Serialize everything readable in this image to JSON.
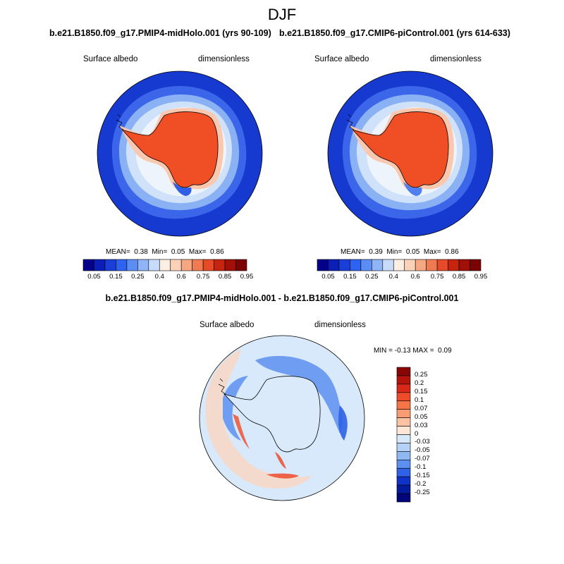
{
  "page": {
    "title": "DJF",
    "diff_title": "b.e21.B1850.f09_g17.PMIP4-midHolo.001 - b.e21.B1850.f09_g17.CMIP6-piControl.001"
  },
  "panels": {
    "left": {
      "case_title": "b.e21.B1850.f09_g17.PMIP4-midHolo.001 (yrs 90-109)",
      "variable": "Surface albedo",
      "units": "dimensionless",
      "mean_label": "MEAN=",
      "mean": "0.38",
      "min_label": "Min=",
      "min": "0.05",
      "max_label": "Max=",
      "max": "0.86"
    },
    "right": {
      "case_title": "b.e21.B1850.f09_g17.CMIP6-piControl.001 (yrs 614-633)",
      "variable": "Surface albedo",
      "units": "dimensionless",
      "mean_label": "MEAN=",
      "mean": "0.39",
      "min_label": "Min=",
      "min": "0.05",
      "max_label": "Max=",
      "max": "0.86"
    },
    "diff": {
      "variable": "Surface albedo",
      "units": "dimensionless",
      "min_label": "MIN =",
      "min": "-0.13",
      "max_label": "MAX =",
      "max": "0.09"
    }
  },
  "colorbars": {
    "abs": {
      "ticks": [
        "0.05",
        "0.15",
        "0.25",
        "0.4",
        "0.6",
        "0.75",
        "0.85",
        "0.95"
      ],
      "colors": [
        "#05008a",
        "#0a1fb8",
        "#1a3fd9",
        "#2e62f0",
        "#5b8ef5",
        "#8fb5f7",
        "#c6dcfa",
        "#fbeee3",
        "#fbd2b8",
        "#f6a882",
        "#f07a52",
        "#e84a27",
        "#c72410",
        "#a01008",
        "#7c0303"
      ]
    },
    "diff": {
      "ticks": [
        "0.25",
        "0.2",
        "0.15",
        "0.1",
        "0.07",
        "0.05",
        "0.03",
        "0",
        "-0.03",
        "-0.05",
        "-0.07",
        "-0.1",
        "-0.15",
        "-0.2",
        "-0.25"
      ],
      "colors": [
        "#8a0606",
        "#b3140c",
        "#d8281a",
        "#ee4b2b",
        "#f57547",
        "#f89c72",
        "#fbc3a4",
        "#fde6d6",
        "#d6e8fa",
        "#b3d2f6",
        "#8fb8f2",
        "#5d8ff0",
        "#2f62e6",
        "#0f33c8",
        "#041b9e",
        "#02067a"
      ]
    }
  },
  "map_colors": {
    "ocean_deep": "#1639d0",
    "ocean_mid": "#3c66ea",
    "ocean_light": "#8ab1f4",
    "sea_ice": "#cfe2fa",
    "sea_ice_pale": "#eef4fb",
    "land_ice": "#f04e24",
    "land_ice_edge": "#f9c8ae",
    "diff_base": "#d8e9fb",
    "diff_pos": "#fbd6c0",
    "diff_neg": "#5d8ff0"
  }
}
